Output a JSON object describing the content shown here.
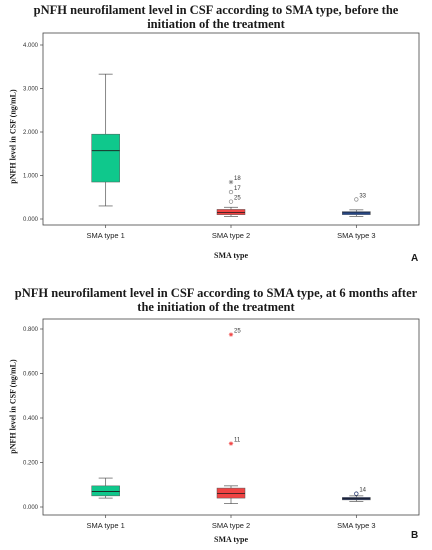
{
  "chart_data": [
    {
      "type": "box",
      "panel_label": "A",
      "title": "pNFH neurofilament level in CSF according to SMA type, before the initiation of the treatment",
      "title_lines": [
        "pNFH neurofilament level in CSF according to SMA type, before the",
        "initiation of the treatment"
      ],
      "xlabel": "SMA type",
      "ylabel": "pNFH level in CSF (ng/mL)",
      "categories": [
        "SMA type 1",
        "SMA type 2",
        "SMA type 3"
      ],
      "ylim": [
        0,
        4.0
      ],
      "yticks": [
        0,
        1,
        2,
        3,
        4
      ],
      "ytick_labels": [
        "0.000",
        "1.000",
        "2.000",
        "3.000",
        "4.000"
      ],
      "boxes": [
        {
          "category": "SMA type 1",
          "min": 0.3,
          "q1": 0.85,
          "median": 1.57,
          "q3": 1.95,
          "max": 3.33,
          "color": "#0fc88c"
        },
        {
          "category": "SMA type 2",
          "min": 0.06,
          "q1": 0.1,
          "median": 0.15,
          "q3": 0.22,
          "max": 0.27,
          "color": "#f04343"
        },
        {
          "category": "SMA type 3",
          "min": 0.06,
          "q1": 0.1,
          "median": 0.14,
          "q3": 0.17,
          "max": 0.21,
          "color": "#2a55a8"
        }
      ],
      "outliers": [
        {
          "category": "SMA type 2",
          "value": 0.85,
          "label": "18",
          "marker": "star",
          "color": "#888888"
        },
        {
          "category": "SMA type 2",
          "value": 0.62,
          "label": "17",
          "marker": "circle",
          "color": "#888888"
        },
        {
          "category": "SMA type 2",
          "value": 0.4,
          "label": "25",
          "marker": "circle",
          "color": "#888888"
        },
        {
          "category": "SMA type 3",
          "value": 0.45,
          "label": "33",
          "marker": "circle",
          "color": "#888888"
        }
      ]
    },
    {
      "type": "box",
      "panel_label": "B",
      "title": "pNFH neurofilament level in CSF according to SMA type, at 6 months after the initiation of the treatment",
      "title_lines": [
        "pNFH neurofilament level in CSF according to SMA type, at 6 months after",
        "the initiation of the treatment"
      ],
      "xlabel": "SMA type",
      "ylabel": "pNFH level in CSF (ng/mL)",
      "categories": [
        "SMA type 1",
        "SMA type 2",
        "SMA type 3"
      ],
      "ylim": [
        0,
        0.8
      ],
      "yticks": [
        0,
        0.2,
        0.4,
        0.6,
        0.8
      ],
      "ytick_labels": [
        "0.000",
        "0.200",
        "0.400",
        "0.600",
        "0.800"
      ],
      "boxes": [
        {
          "category": "SMA type 1",
          "min": 0.04,
          "q1": 0.05,
          "median": 0.07,
          "q3": 0.095,
          "max": 0.13,
          "color": "#0fc88c"
        },
        {
          "category": "SMA type 2",
          "min": 0.015,
          "q1": 0.04,
          "median": 0.06,
          "q3": 0.085,
          "max": 0.095,
          "color": "#f04343"
        },
        {
          "category": "SMA type 3",
          "min": 0.025,
          "q1": 0.032,
          "median": 0.037,
          "q3": 0.043,
          "max": 0.05,
          "color": "#1d2f6b"
        }
      ],
      "outliers": [
        {
          "category": "SMA type 2",
          "value": 0.775,
          "label": "25",
          "marker": "star",
          "color": "#f04343"
        },
        {
          "category": "SMA type 2",
          "value": 0.285,
          "label": "11",
          "marker": "star",
          "color": "#f04343"
        },
        {
          "category": "SMA type 3",
          "value": 0.06,
          "label": "14",
          "marker": "circle",
          "color": "#1d2f6b"
        }
      ]
    }
  ]
}
